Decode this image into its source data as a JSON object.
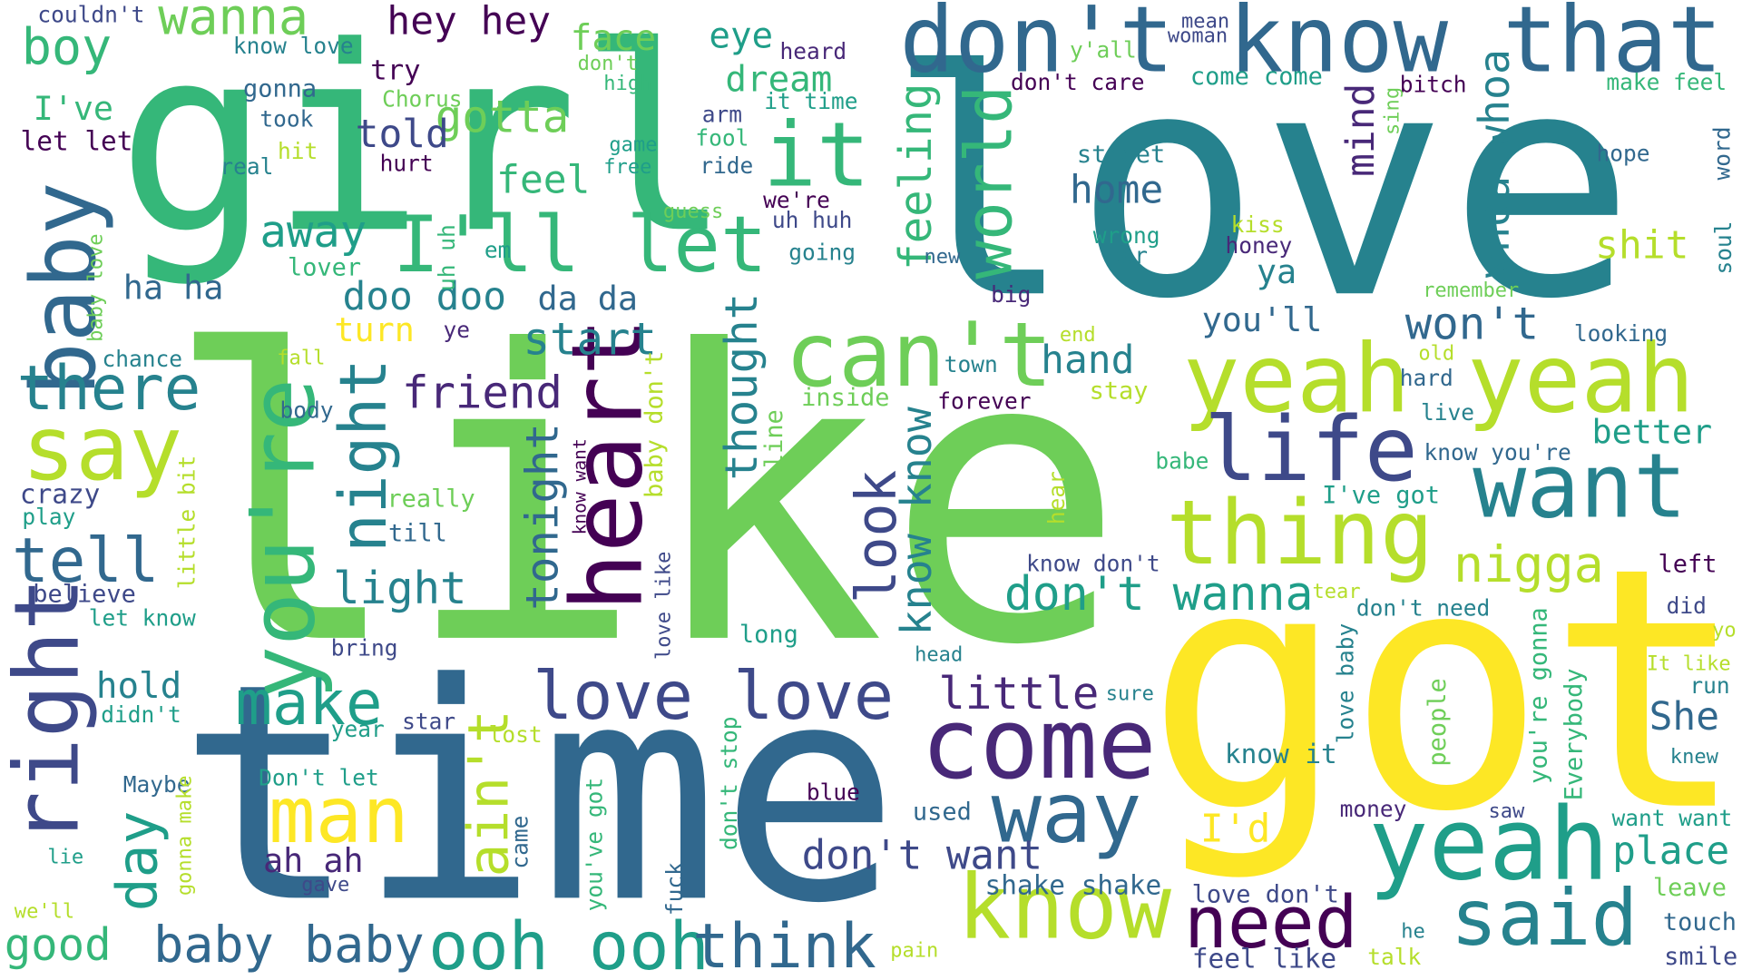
{
  "palette": [
    "#440154",
    "#482878",
    "#3e4989",
    "#31688e",
    "#26828e",
    "#1f9e89",
    "#35b779",
    "#6ece58",
    "#b5de2b",
    "#fde725"
  ],
  "words": [
    {
      "text": "love",
      "color": "#26828e",
      "vertical": false
    },
    {
      "text": "like",
      "color": "#6ece58",
      "vertical": false
    },
    {
      "text": "girl",
      "color": "#35b779",
      "vertical": false
    },
    {
      "text": "time",
      "color": "#31688e",
      "vertical": false
    },
    {
      "text": "got",
      "color": "#fde725",
      "vertical": false
    },
    {
      "text": "yeah yeah",
      "color": "#b5de2b",
      "vertical": false
    },
    {
      "text": "don't know that",
      "color": "#31688e",
      "vertical": false
    },
    {
      "text": "yeah",
      "color": "#1f9e89",
      "vertical": false
    },
    {
      "text": "know",
      "color": "#b5de2b",
      "vertical": false
    },
    {
      "text": "come",
      "color": "#482878",
      "vertical": false
    },
    {
      "text": "want",
      "color": "#26828e",
      "vertical": false
    },
    {
      "text": "thing",
      "color": "#b5de2b",
      "vertical": false
    },
    {
      "text": "said",
      "color": "#26828e",
      "vertical": false
    },
    {
      "text": "can't",
      "color": "#6ece58",
      "vertical": false
    },
    {
      "text": "way",
      "color": "#31688e",
      "vertical": false
    },
    {
      "text": "heart",
      "color": "#440154",
      "vertical": true
    },
    {
      "text": "you're",
      "color": "#35b779",
      "vertical": true
    },
    {
      "text": "baby",
      "color": "#31688e",
      "vertical": true
    },
    {
      "text": "right",
      "color": "#3e4989",
      "vertical": true
    },
    {
      "text": "say",
      "color": "#b5de2b",
      "vertical": false
    },
    {
      "text": "I'll let",
      "color": "#35b779",
      "vertical": false
    },
    {
      "text": "life",
      "color": "#3e4989",
      "vertical": false
    },
    {
      "text": "love love",
      "color": "#3e4989",
      "vertical": false
    },
    {
      "text": "ooh ooh",
      "color": "#1f9e89",
      "vertical": false
    },
    {
      "text": "think",
      "color": "#31688e",
      "vertical": false
    },
    {
      "text": "it",
      "color": "#35b779",
      "vertical": false
    },
    {
      "text": "man",
      "color": "#fde725",
      "vertical": false
    },
    {
      "text": "need",
      "color": "#440154",
      "vertical": false
    },
    {
      "text": "night",
      "color": "#26828e",
      "vertical": true
    },
    {
      "text": "world",
      "color": "#35b779",
      "vertical": true
    },
    {
      "text": "tell",
      "color": "#31688e",
      "vertical": false
    },
    {
      "text": "there",
      "color": "#26828e",
      "vertical": false
    },
    {
      "text": "make",
      "color": "#1f9e89",
      "vertical": false
    },
    {
      "text": "baby baby",
      "color": "#31688e",
      "vertical": false
    },
    {
      "text": "day",
      "color": "#1f9e89",
      "vertical": true
    },
    {
      "text": "ain't",
      "color": "#b5de2b",
      "vertical": true
    },
    {
      "text": "look",
      "color": "#3e4989",
      "vertical": true
    },
    {
      "text": "wanna",
      "color": "#6ece58",
      "vertical": false
    },
    {
      "text": "boy",
      "color": "#35b779",
      "vertical": false
    },
    {
      "text": "don't wanna",
      "color": "#1f9e89",
      "vertical": false
    },
    {
      "text": "nigga",
      "color": "#b5de2b",
      "vertical": false
    },
    {
      "text": "little",
      "color": "#482878",
      "vertical": false
    },
    {
      "text": "good",
      "color": "#35b779",
      "vertical": false
    },
    {
      "text": "place",
      "color": "#1f9e89",
      "vertical": false
    },
    {
      "text": "I'd",
      "color": "#fde725",
      "vertical": false
    },
    {
      "text": "won't",
      "color": "#31688e",
      "vertical": false
    },
    {
      "text": "gotta",
      "color": "#6ece58",
      "vertical": false
    },
    {
      "text": "away",
      "color": "#1f9e89",
      "vertical": false
    },
    {
      "text": "light",
      "color": "#26828e",
      "vertical": false
    },
    {
      "text": "friend",
      "color": "#482878",
      "vertical": false
    },
    {
      "text": "start",
      "color": "#26828e",
      "vertical": false
    },
    {
      "text": "don't want",
      "color": "#3e4989",
      "vertical": false
    },
    {
      "text": "hey hey",
      "color": "#440154",
      "vertical": false
    },
    {
      "text": "face",
      "color": "#6ece58",
      "vertical": false
    },
    {
      "text": "eye",
      "color": "#1f9e89",
      "vertical": false
    },
    {
      "text": "dream",
      "color": "#35b779",
      "vertical": false
    },
    {
      "text": "told",
      "color": "#3e4989",
      "vertical": false
    },
    {
      "text": "feel",
      "color": "#35b779",
      "vertical": false
    },
    {
      "text": "doo doo",
      "color": "#26828e",
      "vertical": false
    },
    {
      "text": "da da",
      "color": "#31688e",
      "vertical": false
    },
    {
      "text": "turn",
      "color": "#fde725",
      "vertical": false
    },
    {
      "text": "hand",
      "color": "#26828e",
      "vertical": false
    },
    {
      "text": "ha ha",
      "color": "#31688e",
      "vertical": false
    },
    {
      "text": "hold",
      "color": "#26828e",
      "vertical": false
    },
    {
      "text": "ah ah",
      "color": "#482878",
      "vertical": false
    },
    {
      "text": "shit",
      "color": "#b5de2b",
      "vertical": false
    },
    {
      "text": "home",
      "color": "#31688e",
      "vertical": false
    },
    {
      "text": "ya",
      "color": "#26828e",
      "vertical": false
    },
    {
      "text": "you'll",
      "color": "#31688e",
      "vertical": false
    },
    {
      "text": "better",
      "color": "#1f9e89",
      "vertical": false
    },
    {
      "text": "She",
      "color": "#31688e",
      "vertical": false
    },
    {
      "text": "I've",
      "color": "#35b779",
      "vertical": false
    },
    {
      "text": "feeling",
      "color": "#35b779",
      "vertical": true
    },
    {
      "text": "tonight",
      "color": "#31688e",
      "vertical": true
    },
    {
      "text": "thought",
      "color": "#26828e",
      "vertical": true
    },
    {
      "text": "know know",
      "color": "#26828e",
      "vertical": true
    },
    {
      "text": "whoa whoa",
      "color": "#26828e",
      "vertical": true
    },
    {
      "text": "mind",
      "color": "#482878",
      "vertical": true
    },
    {
      "text": "shake shake",
      "color": "#31688e",
      "vertical": false
    },
    {
      "text": "love don't",
      "color": "#3e4989",
      "vertical": false
    },
    {
      "text": "feel like",
      "color": "#3e4989",
      "vertical": false
    },
    {
      "text": "leave",
      "color": "#6ece58",
      "vertical": false
    },
    {
      "text": "touch",
      "color": "#31688e",
      "vertical": false
    },
    {
      "text": "smile",
      "color": "#3e4989",
      "vertical": false
    },
    {
      "text": "talk",
      "color": "#b5de2b",
      "vertical": false
    },
    {
      "text": "he",
      "color": "#26828e",
      "vertical": false
    },
    {
      "text": "pain",
      "color": "#b5de2b",
      "vertical": false
    },
    {
      "text": "want want",
      "color": "#1f9e89",
      "vertical": false
    },
    {
      "text": "saw",
      "color": "#3e4989",
      "vertical": false
    },
    {
      "text": "knew",
      "color": "#26828e",
      "vertical": false
    },
    {
      "text": "run",
      "color": "#26828e",
      "vertical": false
    },
    {
      "text": "It like",
      "color": "#b5de2b",
      "vertical": false
    },
    {
      "text": "yo",
      "color": "#b5de2b",
      "vertical": false
    },
    {
      "text": "did",
      "color": "#3e4989",
      "vertical": false
    },
    {
      "text": "left",
      "color": "#440154",
      "vertical": false
    },
    {
      "text": "don't need",
      "color": "#26828e",
      "vertical": false
    },
    {
      "text": "tear",
      "color": "#b5de2b",
      "vertical": false
    },
    {
      "text": "know it",
      "color": "#26828e",
      "vertical": false
    },
    {
      "text": "money",
      "color": "#482878",
      "vertical": false
    },
    {
      "text": "sure",
      "color": "#26828e",
      "vertical": false
    },
    {
      "text": "I've got",
      "color": "#1f9e89",
      "vertical": false
    },
    {
      "text": "know don't",
      "color": "#3e4989",
      "vertical": false
    },
    {
      "text": "know you're",
      "color": "#31688e",
      "vertical": false
    },
    {
      "text": "live",
      "color": "#26828e",
      "vertical": false
    },
    {
      "text": "hard",
      "color": "#31688e",
      "vertical": false
    },
    {
      "text": "old",
      "color": "#b5de2b",
      "vertical": false
    },
    {
      "text": "looking",
      "color": "#31688e",
      "vertical": false
    },
    {
      "text": "remember",
      "color": "#6ece58",
      "vertical": false
    },
    {
      "text": "babe",
      "color": "#35b779",
      "vertical": false
    },
    {
      "text": "stay",
      "color": "#b5de2b",
      "vertical": false
    },
    {
      "text": "end",
      "color": "#b5de2b",
      "vertical": false
    },
    {
      "text": "town",
      "color": "#26828e",
      "vertical": false
    },
    {
      "text": "forever",
      "color": "#440154",
      "vertical": false
    },
    {
      "text": "inside",
      "color": "#6ece58",
      "vertical": false
    },
    {
      "text": "big",
      "color": "#482878",
      "vertical": false
    },
    {
      "text": "new",
      "color": "#31688e",
      "vertical": false
    },
    {
      "text": "honey",
      "color": "#482878",
      "vertical": false
    },
    {
      "text": "kiss",
      "color": "#b5de2b",
      "vertical": false
    },
    {
      "text": "wrong",
      "color": "#1f9e89",
      "vertical": false
    },
    {
      "text": "car",
      "color": "#26828e",
      "vertical": false
    },
    {
      "text": "street",
      "color": "#26828e",
      "vertical": false
    },
    {
      "text": "hope",
      "color": "#31688e",
      "vertical": false
    },
    {
      "text": "bitch",
      "color": "#440154",
      "vertical": false
    },
    {
      "text": "come come",
      "color": "#1f9e89",
      "vertical": false
    },
    {
      "text": "don't care",
      "color": "#440154",
      "vertical": false
    },
    {
      "text": "make feel",
      "color": "#35b779",
      "vertical": false
    },
    {
      "text": "y'all",
      "color": "#6ece58",
      "vertical": false
    },
    {
      "text": "mean",
      "color": "#3e4989",
      "vertical": false
    },
    {
      "text": "woman",
      "color": "#3e4989",
      "vertical": false
    },
    {
      "text": "heard",
      "color": "#482878",
      "vertical": false
    },
    {
      "text": "it time",
      "color": "#1f9e89",
      "vertical": false
    },
    {
      "text": "arm",
      "color": "#3e4989",
      "vertical": false
    },
    {
      "text": "fool",
      "color": "#35b779",
      "vertical": false
    },
    {
      "text": "ride",
      "color": "#31688e",
      "vertical": false
    },
    {
      "text": "we're",
      "color": "#440154",
      "vertical": false
    },
    {
      "text": "uh huh",
      "color": "#3e4989",
      "vertical": false
    },
    {
      "text": "going",
      "color": "#26828e",
      "vertical": false
    },
    {
      "text": "guess",
      "color": "#6ece58",
      "vertical": false
    },
    {
      "text": "game",
      "color": "#1f9e89",
      "vertical": false
    },
    {
      "text": "free",
      "color": "#1f9e89",
      "vertical": false
    },
    {
      "text": "don't",
      "color": "#6ece58",
      "vertical": false
    },
    {
      "text": "high",
      "color": "#35b779",
      "vertical": false
    },
    {
      "text": "try",
      "color": "#440154",
      "vertical": false
    },
    {
      "text": "know love",
      "color": "#26828e",
      "vertical": false
    },
    {
      "text": "couldn't",
      "color": "#3e4989",
      "vertical": false
    },
    {
      "text": "gonna",
      "color": "#31688e",
      "vertical": false
    },
    {
      "text": "took",
      "color": "#31688e",
      "vertical": false
    },
    {
      "text": "Chorus",
      "color": "#6ece58",
      "vertical": false
    },
    {
      "text": "let let",
      "color": "#440154",
      "vertical": false
    },
    {
      "text": "hit",
      "color": "#b5de2b",
      "vertical": false
    },
    {
      "text": "real",
      "color": "#26828e",
      "vertical": false
    },
    {
      "text": "hurt",
      "color": "#440154",
      "vertical": false
    },
    {
      "text": "em",
      "color": "#1f9e89",
      "vertical": false
    },
    {
      "text": "lover",
      "color": "#35b779",
      "vertical": false
    },
    {
      "text": "chance",
      "color": "#26828e",
      "vertical": false
    },
    {
      "text": "ye",
      "color": "#482878",
      "vertical": false
    },
    {
      "text": "fall",
      "color": "#b5de2b",
      "vertical": false
    },
    {
      "text": "body",
      "color": "#31688e",
      "vertical": false
    },
    {
      "text": "crazy",
      "color": "#3e4989",
      "vertical": false
    },
    {
      "text": "play",
      "color": "#1f9e89",
      "vertical": false
    },
    {
      "text": "really",
      "color": "#6ece58",
      "vertical": false
    },
    {
      "text": "till",
      "color": "#31688e",
      "vertical": false
    },
    {
      "text": "believe",
      "color": "#3e4989",
      "vertical": false
    },
    {
      "text": "let know",
      "color": "#1f9e89",
      "vertical": false
    },
    {
      "text": "bring",
      "color": "#3e4989",
      "vertical": false
    },
    {
      "text": "long",
      "color": "#1f9e89",
      "vertical": false
    },
    {
      "text": "didn't",
      "color": "#1f9e89",
      "vertical": false
    },
    {
      "text": "year",
      "color": "#1f9e89",
      "vertical": false
    },
    {
      "text": "star",
      "color": "#3e4989",
      "vertical": false
    },
    {
      "text": "lost",
      "color": "#b5de2b",
      "vertical": false
    },
    {
      "text": "Maybe",
      "color": "#31688e",
      "vertical": false
    },
    {
      "text": "Don't let",
      "color": "#1f9e89",
      "vertical": false
    },
    {
      "text": "blue",
      "color": "#440154",
      "vertical": false
    },
    {
      "text": "used",
      "color": "#31688e",
      "vertical": false
    },
    {
      "text": "head",
      "color": "#26828e",
      "vertical": false
    },
    {
      "text": "lie",
      "color": "#1f9e89",
      "vertical": false
    },
    {
      "text": "gave",
      "color": "#3e4989",
      "vertical": false
    },
    {
      "text": "we'll",
      "color": "#b5de2b",
      "vertical": false
    },
    {
      "text": "uh uh",
      "color": "#35b779",
      "vertical": true
    },
    {
      "text": "baby love",
      "color": "#6ece58",
      "vertical": true
    },
    {
      "text": "little bit",
      "color": "#b5de2b",
      "vertical": true
    },
    {
      "text": "know want",
      "color": "#440154",
      "vertical": true
    },
    {
      "text": "baby don't",
      "color": "#b5de2b",
      "vertical": true
    },
    {
      "text": "love like",
      "color": "#3e4989",
      "vertical": true
    },
    {
      "text": "line",
      "color": "#6ece58",
      "vertical": true
    },
    {
      "text": "hear",
      "color": "#b5de2b",
      "vertical": true
    },
    {
      "text": "sing",
      "color": "#6ece58",
      "vertical": true
    },
    {
      "text": "word",
      "color": "#31688e",
      "vertical": true
    },
    {
      "text": "soul",
      "color": "#26828e",
      "vertical": true
    },
    {
      "text": "love baby",
      "color": "#26828e",
      "vertical": true
    },
    {
      "text": "people",
      "color": "#6ece58",
      "vertical": true
    },
    {
      "text": "you're gonna",
      "color": "#35b779",
      "vertical": true
    },
    {
      "text": "Everybody",
      "color": "#35b779",
      "vertical": true
    },
    {
      "text": "came",
      "color": "#31688e",
      "vertical": true
    },
    {
      "text": "don't stop",
      "color": "#35b779",
      "vertical": true
    },
    {
      "text": "you've got",
      "color": "#35b779",
      "vertical": true
    },
    {
      "text": "fuck",
      "color": "#31688e",
      "vertical": true
    },
    {
      "text": "gonna make",
      "color": "#b5de2b",
      "vertical": true
    }
  ]
}
